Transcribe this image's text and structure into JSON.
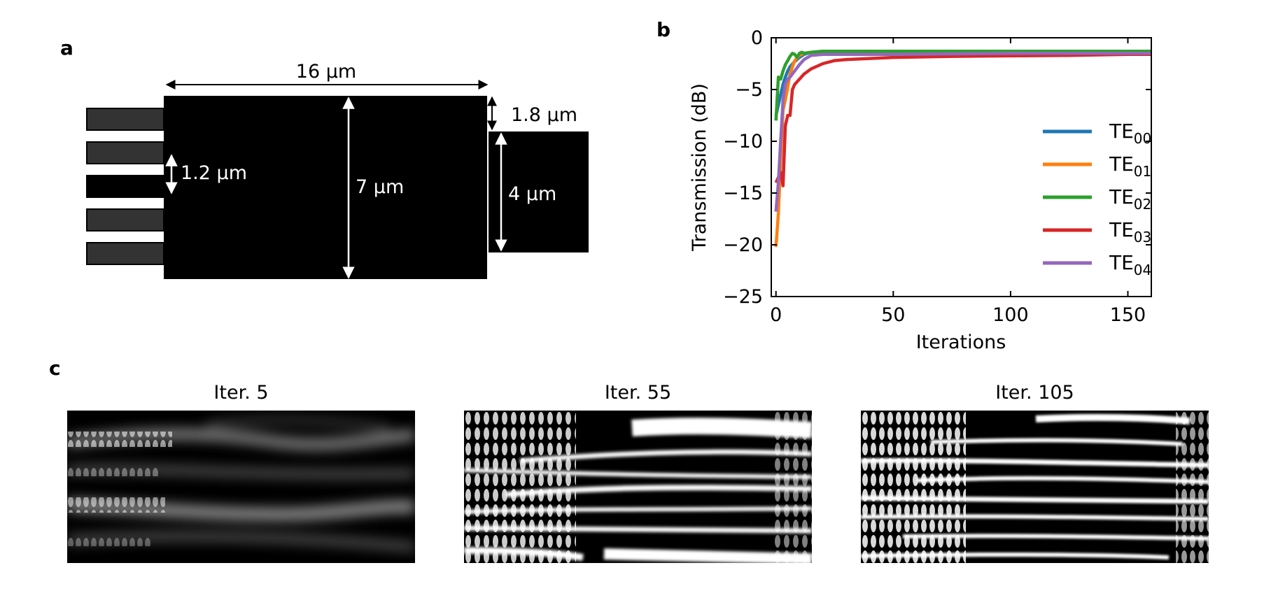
{
  "panel_a": {
    "label": "a",
    "dims": {
      "width": "16 µm",
      "height": "7 µm",
      "wg_pitch": "1.2 µm",
      "offset": "1.8 µm",
      "out_width": "4 µm"
    },
    "colors": {
      "device": "#000000",
      "input_waveguide": "#333333"
    }
  },
  "panel_b": {
    "label": "b",
    "chart_data": {
      "type": "line",
      "xlabel": "Iterations",
      "ylabel": "Transmission (dB)",
      "xlim": [
        -2,
        160
      ],
      "ylim": [
        -25,
        0
      ],
      "xticks": [
        0,
        50,
        100,
        150
      ],
      "yticks": [
        0,
        -5,
        -10,
        -15,
        -20,
        -25
      ],
      "xtick_labels": [
        "0",
        "50",
        "100",
        "150"
      ],
      "ytick_labels": [
        "0",
        "−5",
        "−10",
        "−15",
        "−20",
        "−25"
      ],
      "grid": false,
      "legend_position": "right",
      "series": [
        {
          "name": "TE",
          "sub": "00",
          "color": "#1f77b4",
          "x": [
            0,
            1,
            2,
            3,
            4,
            5,
            6,
            8,
            10,
            12,
            15,
            20,
            30,
            50,
            100,
            160
          ],
          "y": [
            -7.5,
            -6.5,
            -5.5,
            -4.5,
            -3.8,
            -3.2,
            -2.8,
            -2.3,
            -1.9,
            -1.6,
            -1.4,
            -1.3,
            -1.3,
            -1.3,
            -1.3,
            -1.3
          ]
        },
        {
          "name": "TE",
          "sub": "01",
          "color": "#ff7f0e",
          "x": [
            0,
            1,
            2,
            3,
            4,
            5,
            6,
            7,
            8,
            10,
            12,
            15,
            20,
            30,
            50,
            100,
            160
          ],
          "y": [
            -20.2,
            -17.0,
            -12.0,
            -7.0,
            -6.0,
            -4.8,
            -3.5,
            -2.8,
            -2.2,
            -1.7,
            -1.5,
            -1.4,
            -1.4,
            -1.4,
            -1.4,
            -1.4,
            -1.4
          ]
        },
        {
          "name": "TE",
          "sub": "02",
          "color": "#2ca02c",
          "x": [
            0,
            1,
            2,
            3,
            4,
            5,
            6,
            7,
            8,
            9,
            10,
            11,
            12,
            15,
            20,
            30,
            50,
            100,
            160
          ],
          "y": [
            -8.0,
            -3.8,
            -4.0,
            -3.2,
            -2.6,
            -2.2,
            -1.8,
            -1.5,
            -1.6,
            -1.9,
            -1.5,
            -1.4,
            -1.5,
            -1.4,
            -1.3,
            -1.3,
            -1.3,
            -1.3,
            -1.3
          ]
        },
        {
          "name": "TE",
          "sub": "03",
          "color": "#d62728",
          "x": [
            0,
            1,
            2,
            3,
            4,
            5,
            6,
            7,
            8,
            10,
            12,
            15,
            20,
            25,
            30,
            40,
            50,
            75,
            100,
            125,
            150,
            160
          ],
          "y": [
            -14.0,
            -13.5,
            -13.0,
            -14.3,
            -8.5,
            -7.5,
            -7.5,
            -5.0,
            -4.5,
            -4.0,
            -3.5,
            -3.0,
            -2.5,
            -2.2,
            -2.1,
            -2.0,
            -1.9,
            -1.8,
            -1.75,
            -1.7,
            -1.6,
            -1.6
          ]
        },
        {
          "name": "TE",
          "sub": "04",
          "color": "#9467bd",
          "x": [
            0,
            1,
            2,
            3,
            4,
            5,
            6,
            8,
            10,
            12,
            15,
            20,
            30,
            50,
            100,
            160
          ],
          "y": [
            -16.8,
            -14.0,
            -10.0,
            -6.0,
            -4.5,
            -4.0,
            -3.8,
            -3.2,
            -2.6,
            -2.1,
            -1.7,
            -1.6,
            -1.6,
            -1.6,
            -1.5,
            -1.5
          ]
        }
      ]
    }
  },
  "panel_c": {
    "label": "c",
    "fields": [
      {
        "title": "Iter. 5"
      },
      {
        "title": "Iter. 55"
      },
      {
        "title": "Iter. 105"
      }
    ]
  }
}
